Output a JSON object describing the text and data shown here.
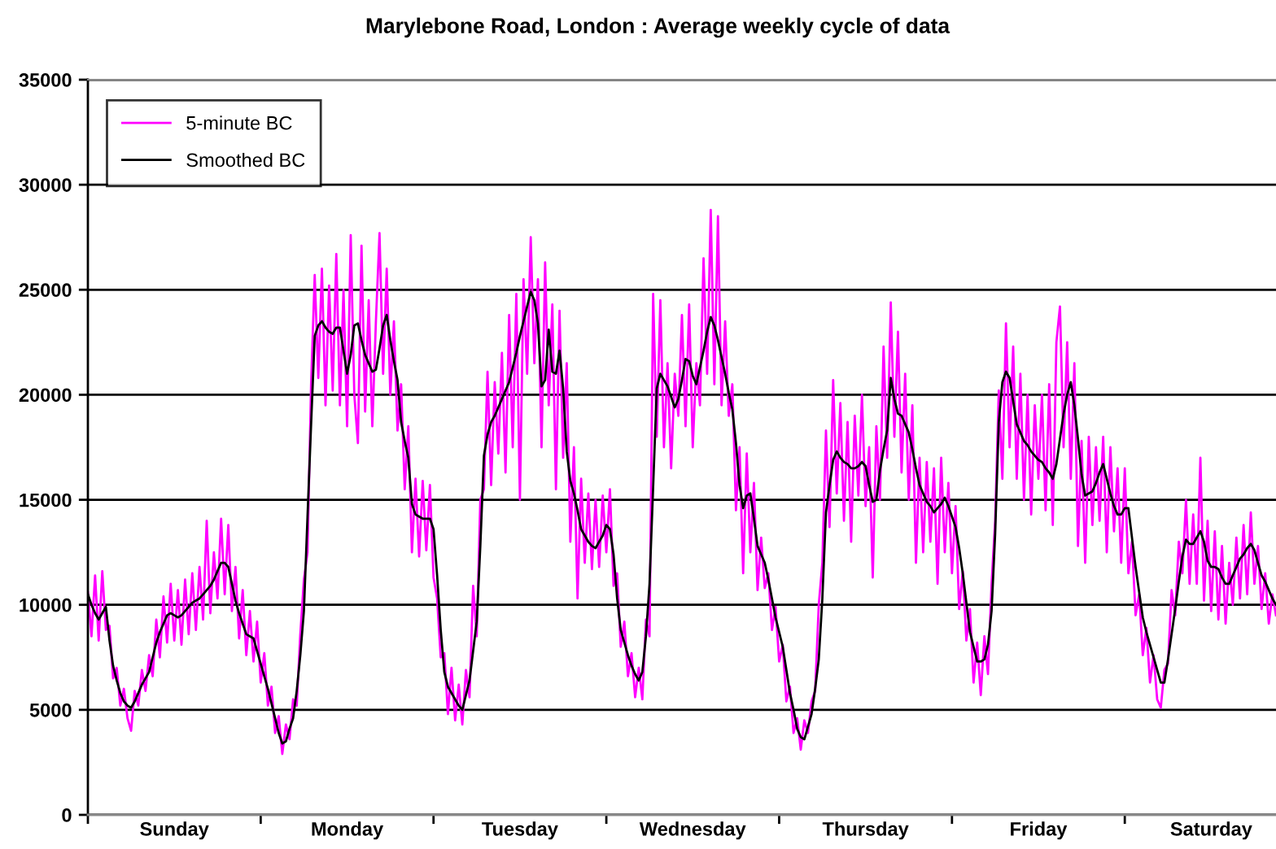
{
  "chart_data": {
    "type": "line",
    "title": "Marylebone Road, London : Average weekly cycle of data",
    "categories": [
      null,
      null,
      null,
      null,
      null,
      null,
      null,
      null,
      null,
      null,
      null,
      null,
      null,
      null,
      null,
      null,
      null,
      null,
      null,
      null,
      null,
      null,
      null,
      null,
      "Sunday",
      null,
      null,
      null,
      null,
      null,
      null,
      null,
      null,
      null,
      null,
      null,
      null,
      null,
      null,
      null,
      null,
      null,
      null,
      null,
      null,
      null,
      null,
      null,
      null,
      null,
      null,
      null,
      null,
      null,
      null,
      null,
      null,
      null,
      null,
      null,
      null,
      null,
      null,
      null,
      null,
      null,
      null,
      null,
      null,
      null,
      null,
      null,
      "Monday",
      null,
      null,
      null,
      null,
      null,
      null,
      null,
      null,
      null,
      null,
      null,
      null,
      null,
      null,
      null,
      null,
      null,
      null,
      null,
      null,
      null,
      null,
      null,
      null,
      null,
      null,
      null,
      null,
      null,
      null,
      null,
      null,
      null,
      null,
      null,
      null,
      null,
      null,
      null,
      null,
      null,
      null,
      null,
      null,
      null,
      null,
      null,
      "Tuesday",
      null,
      null,
      null,
      null,
      null,
      null,
      null,
      null,
      null,
      null,
      null,
      null,
      null,
      null,
      null,
      null,
      null,
      null,
      null,
      null,
      null,
      null,
      null,
      null,
      null,
      null,
      null,
      null,
      null,
      null,
      null,
      null,
      null,
      null,
      null,
      null,
      null,
      null,
      null,
      null,
      null,
      null,
      null,
      null,
      null,
      null,
      null,
      "Wednesday",
      null,
      null,
      null,
      null,
      null,
      null,
      null,
      null,
      null,
      null,
      null,
      null,
      null,
      null,
      null,
      null,
      null,
      null,
      null,
      null,
      null,
      null,
      null,
      null,
      null,
      null,
      null,
      null,
      null,
      null,
      null,
      null,
      null,
      null,
      null,
      null,
      null,
      null,
      null,
      null,
      null,
      null,
      null,
      null,
      null,
      null,
      null,
      "Thursday",
      null,
      null,
      null,
      null,
      null,
      null,
      null,
      null,
      null,
      null,
      null,
      null,
      null,
      null,
      null,
      null,
      null,
      null,
      null,
      null,
      null,
      null,
      null,
      null,
      null,
      null,
      null,
      null,
      null,
      null,
      null,
      null,
      null,
      null,
      null,
      null,
      null,
      null,
      null,
      null,
      null,
      null,
      null,
      null,
      null,
      null,
      null,
      "Friday",
      null,
      null,
      null,
      null,
      null,
      null,
      null,
      null,
      null,
      null,
      null,
      null,
      null,
      null,
      null,
      null,
      null,
      null,
      null,
      null,
      null,
      null,
      null,
      null,
      null,
      null,
      null,
      null,
      null,
      null,
      null,
      null,
      null,
      null,
      null,
      null,
      null,
      null,
      null,
      null,
      null,
      null,
      null,
      null,
      null,
      null,
      null,
      "Saturday",
      null,
      null,
      null,
      null,
      null,
      null,
      null,
      null,
      null,
      null,
      null,
      null,
      null,
      null,
      null,
      null,
      null,
      null
    ],
    "ylim": [
      0,
      35000
    ],
    "yticks": [
      0,
      5000,
      10000,
      15000,
      20000,
      25000,
      30000,
      35000
    ],
    "grid": "y",
    "legend": "top left",
    "marker": "none",
    "line_style": "solid",
    "series": [
      {
        "name": "5-minute BC",
        "color": "#ff00ff",
        "values": [
          10600,
          8500,
          11400,
          8300,
          11600,
          8800,
          9000,
          6500,
          7000,
          5200,
          6000,
          4600,
          4000,
          5900,
          5200,
          6900,
          5900,
          7600,
          6600,
          9300,
          7500,
          10400,
          8200,
          11000,
          8300,
          10700,
          8100,
          11200,
          8600,
          11500,
          8800,
          11800,
          9300,
          14000,
          9600,
          12500,
          10300,
          14100,
          10500,
          13800,
          9700,
          11800,
          8400,
          10700,
          7600,
          9700,
          7300,
          9200,
          6300,
          7700,
          5200,
          6100,
          3900,
          4700,
          2900,
          4300,
          3600,
          5500,
          5200,
          8600,
          11200,
          12500,
          20500,
          25700,
          20800,
          26000,
          19500,
          25200,
          20200,
          26700,
          19500,
          25000,
          18500,
          27600,
          20000,
          17700,
          27100,
          19200,
          24500,
          18500,
          23500,
          27700,
          21000,
          26000,
          20000,
          23500,
          18300,
          20500,
          15500,
          18500,
          12500,
          16000,
          12300,
          15900,
          12600,
          15700,
          11300,
          10300,
          7500,
          7700,
          4800,
          7000,
          4500,
          6200,
          4300,
          6900,
          5600,
          10900,
          8500,
          15000,
          15500,
          21100,
          15700,
          20600,
          17200,
          22000,
          16300,
          23800,
          17500,
          24800,
          15000,
          25500,
          21000,
          27500,
          21500,
          25500,
          17500,
          26300,
          19500,
          24300,
          15500,
          24000,
          17000,
          21500,
          13000,
          17500,
          10300,
          16000,
          12000,
          15300,
          11700,
          15000,
          11800,
          15200,
          12500,
          15500,
          10900,
          11500,
          8000,
          9200,
          6600,
          7700,
          5600,
          7000,
          5500,
          9300,
          8500,
          24800,
          18000,
          24500,
          17500,
          21500,
          16500,
          21000,
          19000,
          23800,
          18500,
          24300,
          17500,
          21500,
          19500,
          26500,
          21000,
          28800,
          20500,
          28500,
          19500,
          23500,
          19000,
          20500,
          14500,
          17500,
          11500,
          17200,
          12500,
          15800,
          10700,
          13200,
          10800,
          11500,
          8800,
          9900,
          7300,
          8100,
          5400,
          6100,
          3900,
          4600,
          3100,
          4500,
          3900,
          5400,
          5900,
          10000,
          12000,
          18300,
          13700,
          20700,
          15300,
          19600,
          14000,
          18700,
          13000,
          19000,
          15200,
          20000,
          14700,
          17500,
          11300,
          18500,
          15000,
          22300,
          17000,
          24400,
          18000,
          23000,
          16300,
          21000,
          15000,
          19500,
          12000,
          17000,
          12500,
          16800,
          13000,
          16500,
          11000,
          17000,
          12500,
          15800,
          11500,
          14700,
          9800,
          11600,
          8300,
          9800,
          6300,
          8200,
          5700,
          8500,
          6700,
          11000,
          14000,
          20200,
          16000,
          23400,
          17500,
          22300,
          16000,
          21000,
          15000,
          20000,
          14300,
          19500,
          16000,
          20000,
          14500,
          20500,
          13800,
          22500,
          24200,
          17500,
          22500,
          16000,
          21500,
          12800,
          17800,
          12000,
          18000,
          13800,
          17500,
          14000,
          18000,
          12500,
          17500,
          13500,
          16500,
          12000,
          16500,
          11500,
          13000,
          9500,
          10500,
          7600,
          8900,
          6300,
          7600,
          5500,
          5100,
          6900,
          7200,
          10700,
          9500,
          13000,
          11500,
          15000,
          11000,
          14300,
          11000,
          17000,
          10200,
          14000,
          9700,
          13500,
          9300,
          12800,
          9100,
          12000,
          10000,
          13200,
          10300,
          13800,
          10500,
          14400,
          11000,
          12800,
          9800,
          11500,
          9100,
          10500,
          9500
        ]
      },
      {
        "name": "Smoothed BC",
        "color": "#000000",
        "values": [
          10500,
          10000,
          9600,
          9300,
          9600,
          9900,
          8300,
          7100,
          6400,
          5800,
          5400,
          5200,
          5100,
          5400,
          5800,
          6200,
          6500,
          6800,
          7500,
          8200,
          8700,
          9100,
          9500,
          9600,
          9500,
          9400,
          9500,
          9700,
          9900,
          10100,
          10200,
          10300,
          10500,
          10700,
          10900,
          11200,
          11600,
          12000,
          12000,
          11800,
          11000,
          10200,
          9600,
          9100,
          8600,
          8500,
          8400,
          7800,
          7200,
          6600,
          6000,
          5300,
          4600,
          3900,
          3400,
          3500,
          4100,
          4600,
          5900,
          7600,
          9700,
          14200,
          18600,
          22800,
          23300,
          23500,
          23200,
          23000,
          22900,
          23200,
          23200,
          22100,
          21000,
          21900,
          23300,
          23400,
          22600,
          21900,
          21500,
          21100,
          21200,
          22200,
          23300,
          23800,
          22600,
          21600,
          20700,
          18700,
          17800,
          17000,
          14800,
          14300,
          14200,
          14100,
          14100,
          14100,
          13600,
          11400,
          8800,
          6800,
          6100,
          5800,
          5500,
          5200,
          5000,
          5700,
          6400,
          7800,
          9200,
          12800,
          17100,
          18100,
          18700,
          19000,
          19400,
          19800,
          20200,
          20600,
          21300,
          22000,
          22800,
          23500,
          24200,
          24900,
          24500,
          23400,
          20400,
          20700,
          23100,
          21100,
          21000,
          22100,
          20300,
          17300,
          15900,
          15300,
          14500,
          13600,
          13300,
          13000,
          12800,
          12700,
          13000,
          13300,
          13800,
          13600,
          12400,
          10300,
          8800,
          8200,
          7600,
          7100,
          6700,
          6400,
          6800,
          8500,
          11000,
          15600,
          20300,
          21000,
          20700,
          20400,
          19900,
          19400,
          19800,
          20700,
          21700,
          21600,
          20900,
          20500,
          21300,
          22100,
          23000,
          23700,
          23300,
          22600,
          21800,
          21000,
          20100,
          19300,
          17700,
          15700,
          14600,
          15200,
          15300,
          14100,
          12800,
          12400,
          12000,
          11200,
          10300,
          9400,
          8700,
          8000,
          6900,
          5800,
          5000,
          4100,
          3700,
          3600,
          4200,
          4800,
          6000,
          7400,
          10300,
          14400,
          15700,
          16900,
          17300,
          17000,
          16800,
          16700,
          16500,
          16500,
          16600,
          16800,
          16600,
          15700,
          14900,
          15000,
          16400,
          17400,
          18300,
          20800,
          19800,
          19100,
          19000,
          18600,
          18200,
          17400,
          16500,
          15700,
          15300,
          14900,
          14700,
          14400,
          14600,
          14800,
          15100,
          14700,
          14200,
          13700,
          12700,
          11500,
          10100,
          8700,
          8000,
          7300,
          7300,
          7400,
          8100,
          9700,
          13400,
          18700,
          20600,
          21100,
          20800,
          19700,
          18600,
          18200,
          17800,
          17600,
          17300,
          17100,
          16900,
          16800,
          16500,
          16300,
          16000,
          16700,
          17900,
          19100,
          20000,
          20600,
          19500,
          17900,
          16200,
          15200,
          15300,
          15400,
          15800,
          16300,
          16700,
          16000,
          15300,
          14700,
          14300,
          14300,
          14600,
          14600,
          13200,
          11800,
          10600,
          9400,
          8700,
          8100,
          7500,
          6900,
          6300,
          6300,
          7400,
          8600,
          9800,
          11100,
          12300,
          13100,
          12900,
          12900,
          13200,
          13500,
          13000,
          12100,
          11800,
          11800,
          11700,
          11300,
          11000,
          11000,
          11400,
          11800,
          12200,
          12400,
          12700,
          12900,
          12600,
          12000,
          11400,
          11100,
          10700,
          10300,
          10000
        ]
      }
    ]
  }
}
